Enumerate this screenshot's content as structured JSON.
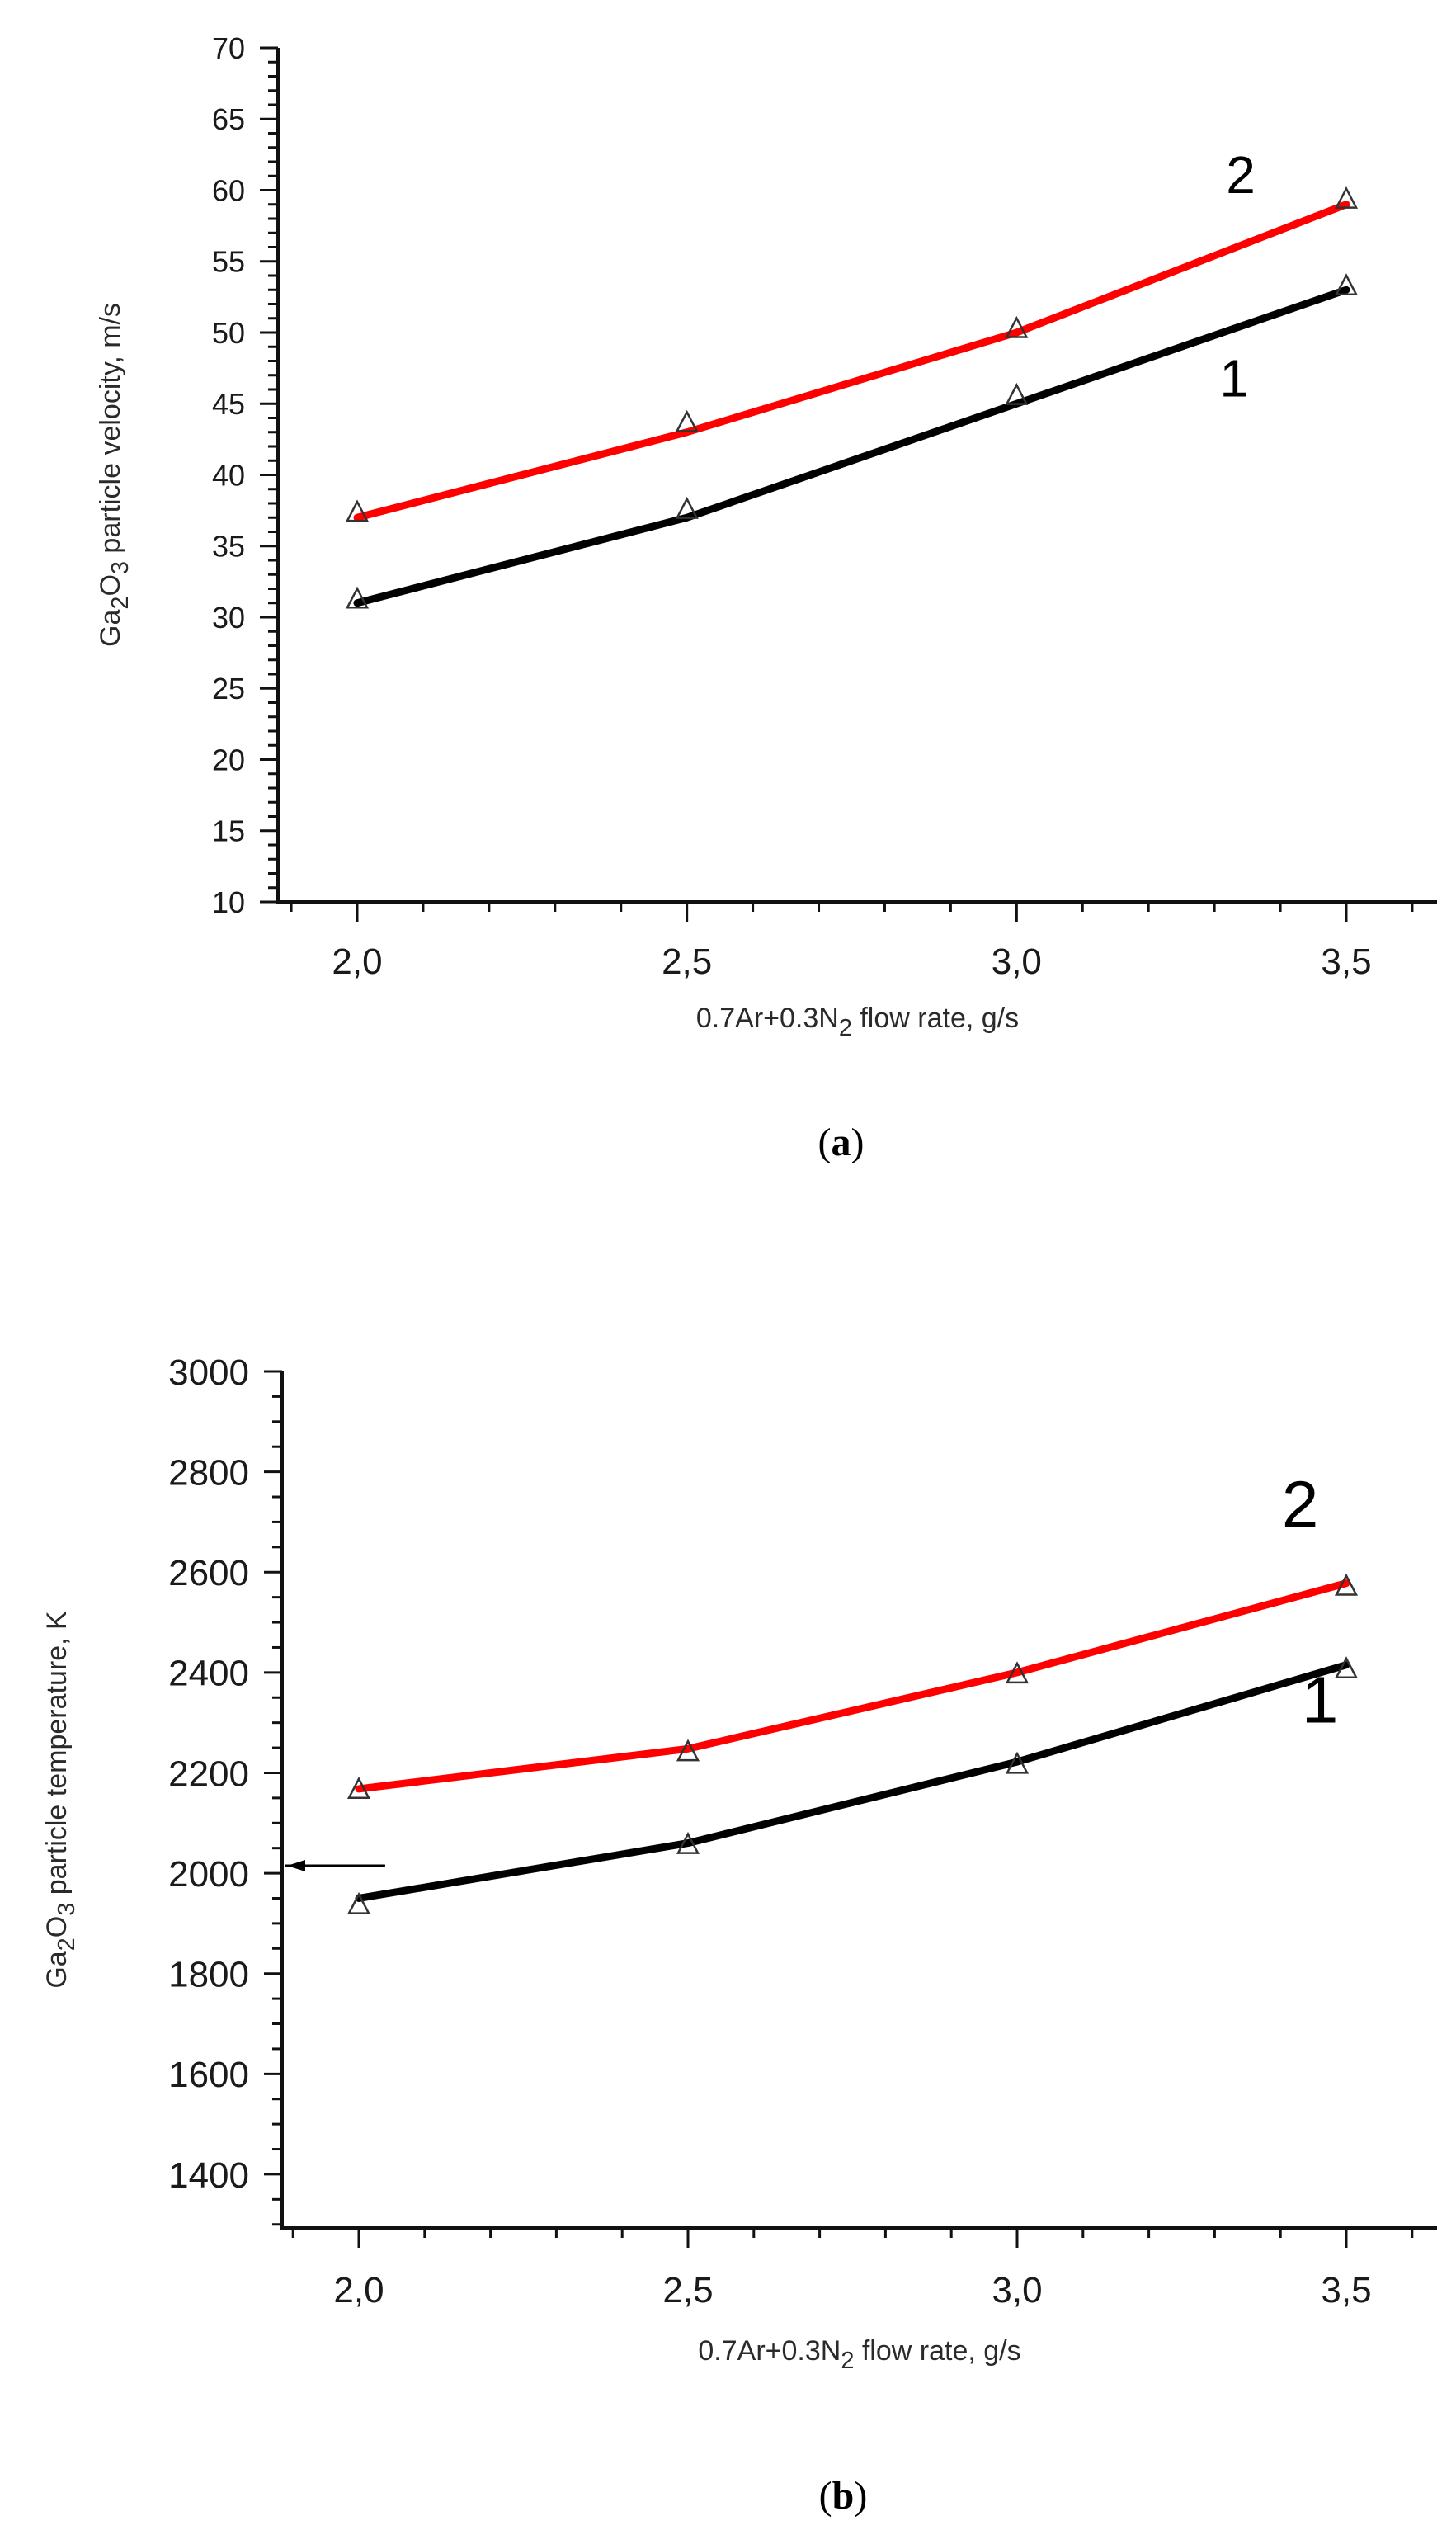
{
  "chart_data": [
    {
      "id": "a",
      "type": "line",
      "caption": "(a)",
      "caption_bold": "a",
      "title": "",
      "xlabel": "0.7Ar+0.3N2 flow rate, g/s",
      "xlabel_parts": {
        "pre": "0.7Ar+0.3N",
        "sub": "2",
        "post": " flow rate, g/s"
      },
      "ylabel": "Ga2O3 particle velocity, m/s",
      "ylabel_parts": {
        "a": "Ga",
        "s1": "2",
        "b": "O",
        "s2": "3",
        "c": " particle velocity, m/s"
      },
      "x": [
        2.0,
        2.5,
        3.0,
        3.5
      ],
      "xticks": [
        "2,0",
        "2,5",
        "3,0",
        "3,5"
      ],
      "xlim": [
        1.88,
        3.64
      ],
      "ylim": [
        10,
        70
      ],
      "yticks": [
        10,
        15,
        20,
        25,
        30,
        35,
        40,
        45,
        50,
        55,
        60,
        65,
        70
      ],
      "y_minor_step": 1,
      "x_minor_step": 0.1,
      "grid": false,
      "series": [
        {
          "name": "1",
          "color": "#000000",
          "values": [
            31,
            37,
            45,
            53
          ],
          "markers": [
            31.2,
            37.5,
            45.5,
            53.2
          ],
          "label_pos": [
            3.33,
            45.5
          ]
        },
        {
          "name": "2",
          "color": "#ff0000",
          "values": [
            37,
            43,
            50,
            59
          ],
          "markers": [
            37.3,
            43.6,
            50.2,
            59.3
          ],
          "label_pos": [
            3.34,
            59.8
          ]
        }
      ]
    },
    {
      "id": "b",
      "type": "line",
      "caption": "(b)",
      "caption_bold": "b",
      "title": "",
      "xlabel": "0.7Ar+0.3N2 flow rate, g/s",
      "xlabel_parts": {
        "pre": "0.7Ar+0.3N",
        "sub": "2",
        "post": " flow rate, g/s"
      },
      "ylabel": "Ga2O3 particle temperature, K",
      "ylabel_parts": {
        "a": "Ga",
        "s1": "2",
        "b": "O",
        "s2": "3",
        "c": " particle temperature, K"
      },
      "x": [
        2.0,
        2.5,
        3.0,
        3.5
      ],
      "xticks": [
        "2,0",
        "2,5",
        "3,0",
        "3,5"
      ],
      "xlim": [
        1.88,
        3.64
      ],
      "ylim": [
        1293,
        3000
      ],
      "yticks": [
        1400,
        1600,
        1800,
        2000,
        2200,
        2400,
        2600,
        2800,
        3000
      ],
      "y_minor_step": 50,
      "x_minor_step": 0.1,
      "grid": false,
      "series": [
        {
          "name": "1",
          "color": "#000000",
          "values": [
            1950,
            2060,
            2222,
            2415
          ],
          "markers": [
            1935,
            2055,
            2215,
            2405
          ],
          "label_pos": [
            3.46,
            2300
          ]
        },
        {
          "name": "2",
          "color": "#ff0000",
          "values": [
            2168,
            2248,
            2400,
            2578
          ],
          "markers": [
            2165,
            2240,
            2395,
            2570
          ],
          "label_pos": [
            3.43,
            2690
          ]
        }
      ],
      "annotations": [
        {
          "type": "arrow",
          "y": 2015,
          "x_from": 2.04,
          "x_to": 1.89,
          "color": "#000000"
        }
      ]
    }
  ]
}
